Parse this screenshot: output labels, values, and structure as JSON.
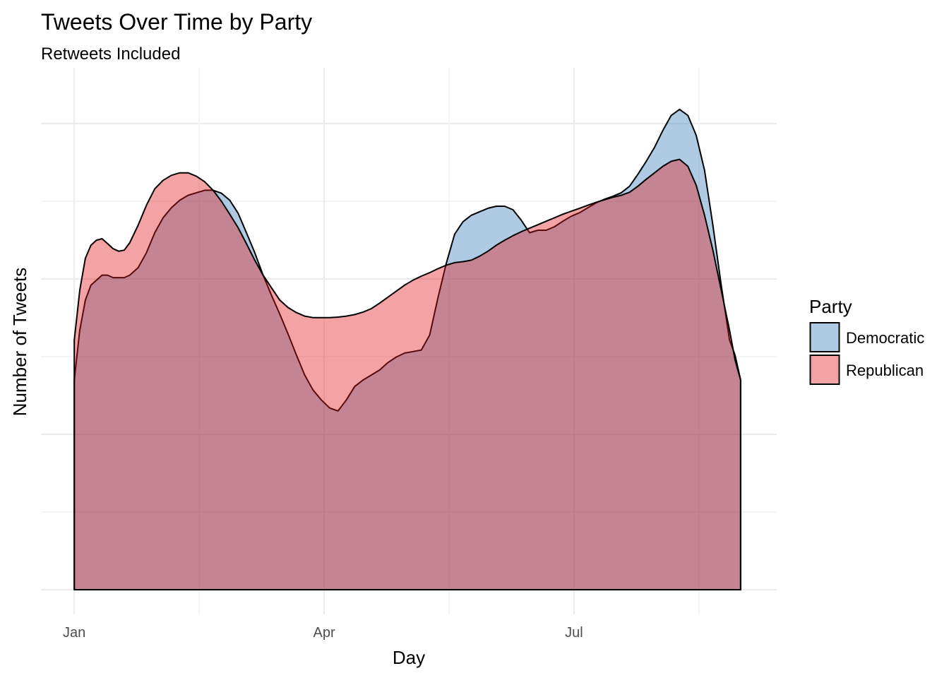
{
  "chart_data": {
    "type": "area",
    "title": "Tweets Over Time by Party",
    "subtitle": "Retweets Included",
    "xlabel": "Day",
    "ylabel": "Number of Tweets",
    "x_ticks": [
      {
        "label": "Jan",
        "day": 0
      },
      {
        "label": "Apr",
        "day": 90
      },
      {
        "label": "Jul",
        "day": 180
      }
    ],
    "xlim": [
      -12,
      253
    ],
    "ylim": [
      0,
      1.0
    ],
    "grid": true,
    "legend": {
      "title": "Party",
      "placement": "right"
    },
    "series": [
      {
        "name": "Democratic",
        "color": "#377eb8",
        "alpha": 0.4,
        "x": [
          0,
          2,
          4,
          6,
          8,
          10,
          12,
          14,
          16,
          18,
          20,
          23,
          26,
          29,
          32,
          35,
          38,
          41,
          44,
          47,
          50,
          53,
          56,
          59,
          62,
          65,
          68,
          71,
          74,
          77,
          80,
          83,
          86,
          89,
          92,
          95,
          98,
          101,
          104,
          107,
          110,
          113,
          116,
          119,
          122,
          125,
          128,
          131,
          134,
          137,
          140,
          143,
          146,
          149,
          152,
          155,
          158,
          161,
          164,
          167,
          170,
          173,
          176,
          179,
          182,
          185,
          188,
          191,
          194,
          197,
          200,
          203,
          206,
          209,
          212,
          215,
          218,
          221,
          224,
          227,
          230,
          233,
          236,
          238,
          240
        ],
        "y": [
          0.42,
          0.52,
          0.58,
          0.61,
          0.62,
          0.63,
          0.63,
          0.625,
          0.625,
          0.625,
          0.63,
          0.645,
          0.675,
          0.715,
          0.745,
          0.765,
          0.78,
          0.79,
          0.795,
          0.8,
          0.8,
          0.794,
          0.78,
          0.754,
          0.715,
          0.675,
          0.63,
          0.59,
          0.552,
          0.512,
          0.47,
          0.43,
          0.4,
          0.38,
          0.364,
          0.358,
          0.38,
          0.407,
          0.42,
          0.43,
          0.44,
          0.455,
          0.466,
          0.474,
          0.477,
          0.48,
          0.51,
          0.585,
          0.654,
          0.712,
          0.737,
          0.75,
          0.757,
          0.764,
          0.768,
          0.768,
          0.761,
          0.74,
          0.715,
          0.72,
          0.72,
          0.727,
          0.738,
          0.748,
          0.755,
          0.765,
          0.775,
          0.782,
          0.788,
          0.795,
          0.808,
          0.832,
          0.858,
          0.886,
          0.92,
          0.95,
          0.962,
          0.95,
          0.91,
          0.84,
          0.73,
          0.61,
          0.5,
          0.47,
          0.42
        ]
      },
      {
        "name": "Republican",
        "color": "#e41a1c",
        "alpha": 0.4,
        "x": [
          0,
          2,
          4,
          6,
          8,
          10,
          12,
          14,
          16,
          18,
          20,
          23,
          26,
          29,
          32,
          35,
          38,
          41,
          44,
          47,
          50,
          53,
          56,
          59,
          62,
          65,
          68,
          71,
          74,
          77,
          80,
          83,
          86,
          89,
          92,
          95,
          98,
          101,
          104,
          107,
          110,
          113,
          116,
          119,
          122,
          125,
          128,
          131,
          134,
          137,
          140,
          143,
          146,
          149,
          152,
          155,
          158,
          161,
          164,
          167,
          170,
          173,
          176,
          179,
          182,
          185,
          188,
          191,
          194,
          197,
          200,
          203,
          206,
          209,
          212,
          215,
          218,
          221,
          224,
          227,
          230,
          233,
          236,
          238,
          240
        ],
        "y": [
          0.5,
          0.6,
          0.664,
          0.69,
          0.7,
          0.703,
          0.693,
          0.683,
          0.678,
          0.68,
          0.695,
          0.73,
          0.77,
          0.803,
          0.82,
          0.83,
          0.835,
          0.835,
          0.828,
          0.817,
          0.8,
          0.778,
          0.752,
          0.725,
          0.693,
          0.66,
          0.63,
          0.605,
          0.58,
          0.565,
          0.555,
          0.548,
          0.545,
          0.545,
          0.545,
          0.546,
          0.548,
          0.551,
          0.556,
          0.563,
          0.574,
          0.586,
          0.598,
          0.61,
          0.62,
          0.628,
          0.635,
          0.643,
          0.65,
          0.655,
          0.657,
          0.66,
          0.668,
          0.678,
          0.69,
          0.7,
          0.709,
          0.717,
          0.724,
          0.731,
          0.738,
          0.745,
          0.752,
          0.758,
          0.764,
          0.77,
          0.776,
          0.781,
          0.786,
          0.79,
          0.796,
          0.808,
          0.822,
          0.835,
          0.848,
          0.858,
          0.862,
          0.848,
          0.81,
          0.75,
          0.68,
          0.6,
          0.52,
          0.46,
          0.42
        ]
      }
    ]
  }
}
